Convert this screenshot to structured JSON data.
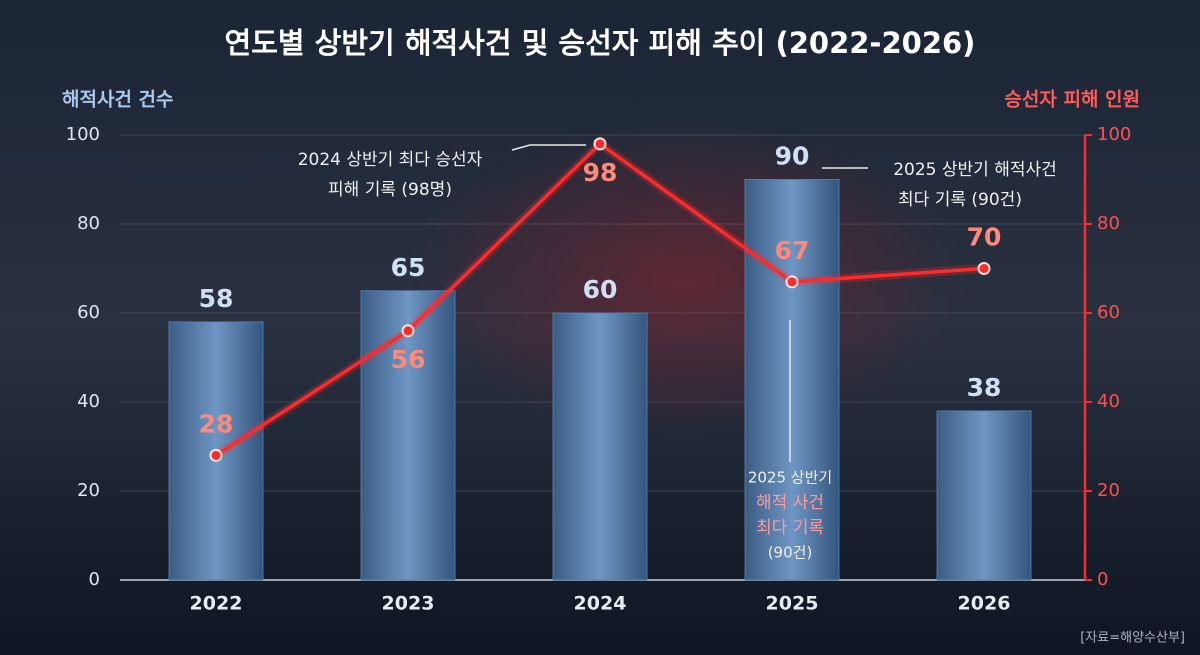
{
  "chart_data": {
    "type": "combo",
    "title": "연도별 상반기 해적사건 및 승선자 피해 추이 (2022-2026)",
    "y_label": "해적사건 건수",
    "y2_label": "승선자 피해 인원",
    "categories": [
      "2022",
      "2023",
      "2024",
      "2025",
      "2026"
    ],
    "series": [
      {
        "type": "bar",
        "color": "#5d86b5",
        "values": [
          58,
          65,
          60,
          90,
          38
        ]
      },
      {
        "type": "line",
        "color": "#ff2a2a",
        "axis": "y2",
        "values": [
          28,
          56,
          98,
          67,
          70
        ]
      }
    ],
    "ylim": [
      0,
      100
    ],
    "yticks": [
      0,
      20,
      40,
      60,
      80,
      100
    ],
    "y2lim": [
      0,
      100
    ],
    "y2ticks": [
      0,
      20,
      40,
      60,
      80,
      100
    ],
    "grid": true,
    "annotations": [
      [
        "2024 상반기 최다 승선자",
        "피해 기록 (98명)"
      ],
      [
        "2025 상반기 해적사건",
        "최다 기록 (90건)"
      ],
      [
        "2025 상반기",
        "해적 사건",
        "최다 기록",
        "(90건)"
      ]
    ],
    "source": "[자료=해양수산부]"
  }
}
